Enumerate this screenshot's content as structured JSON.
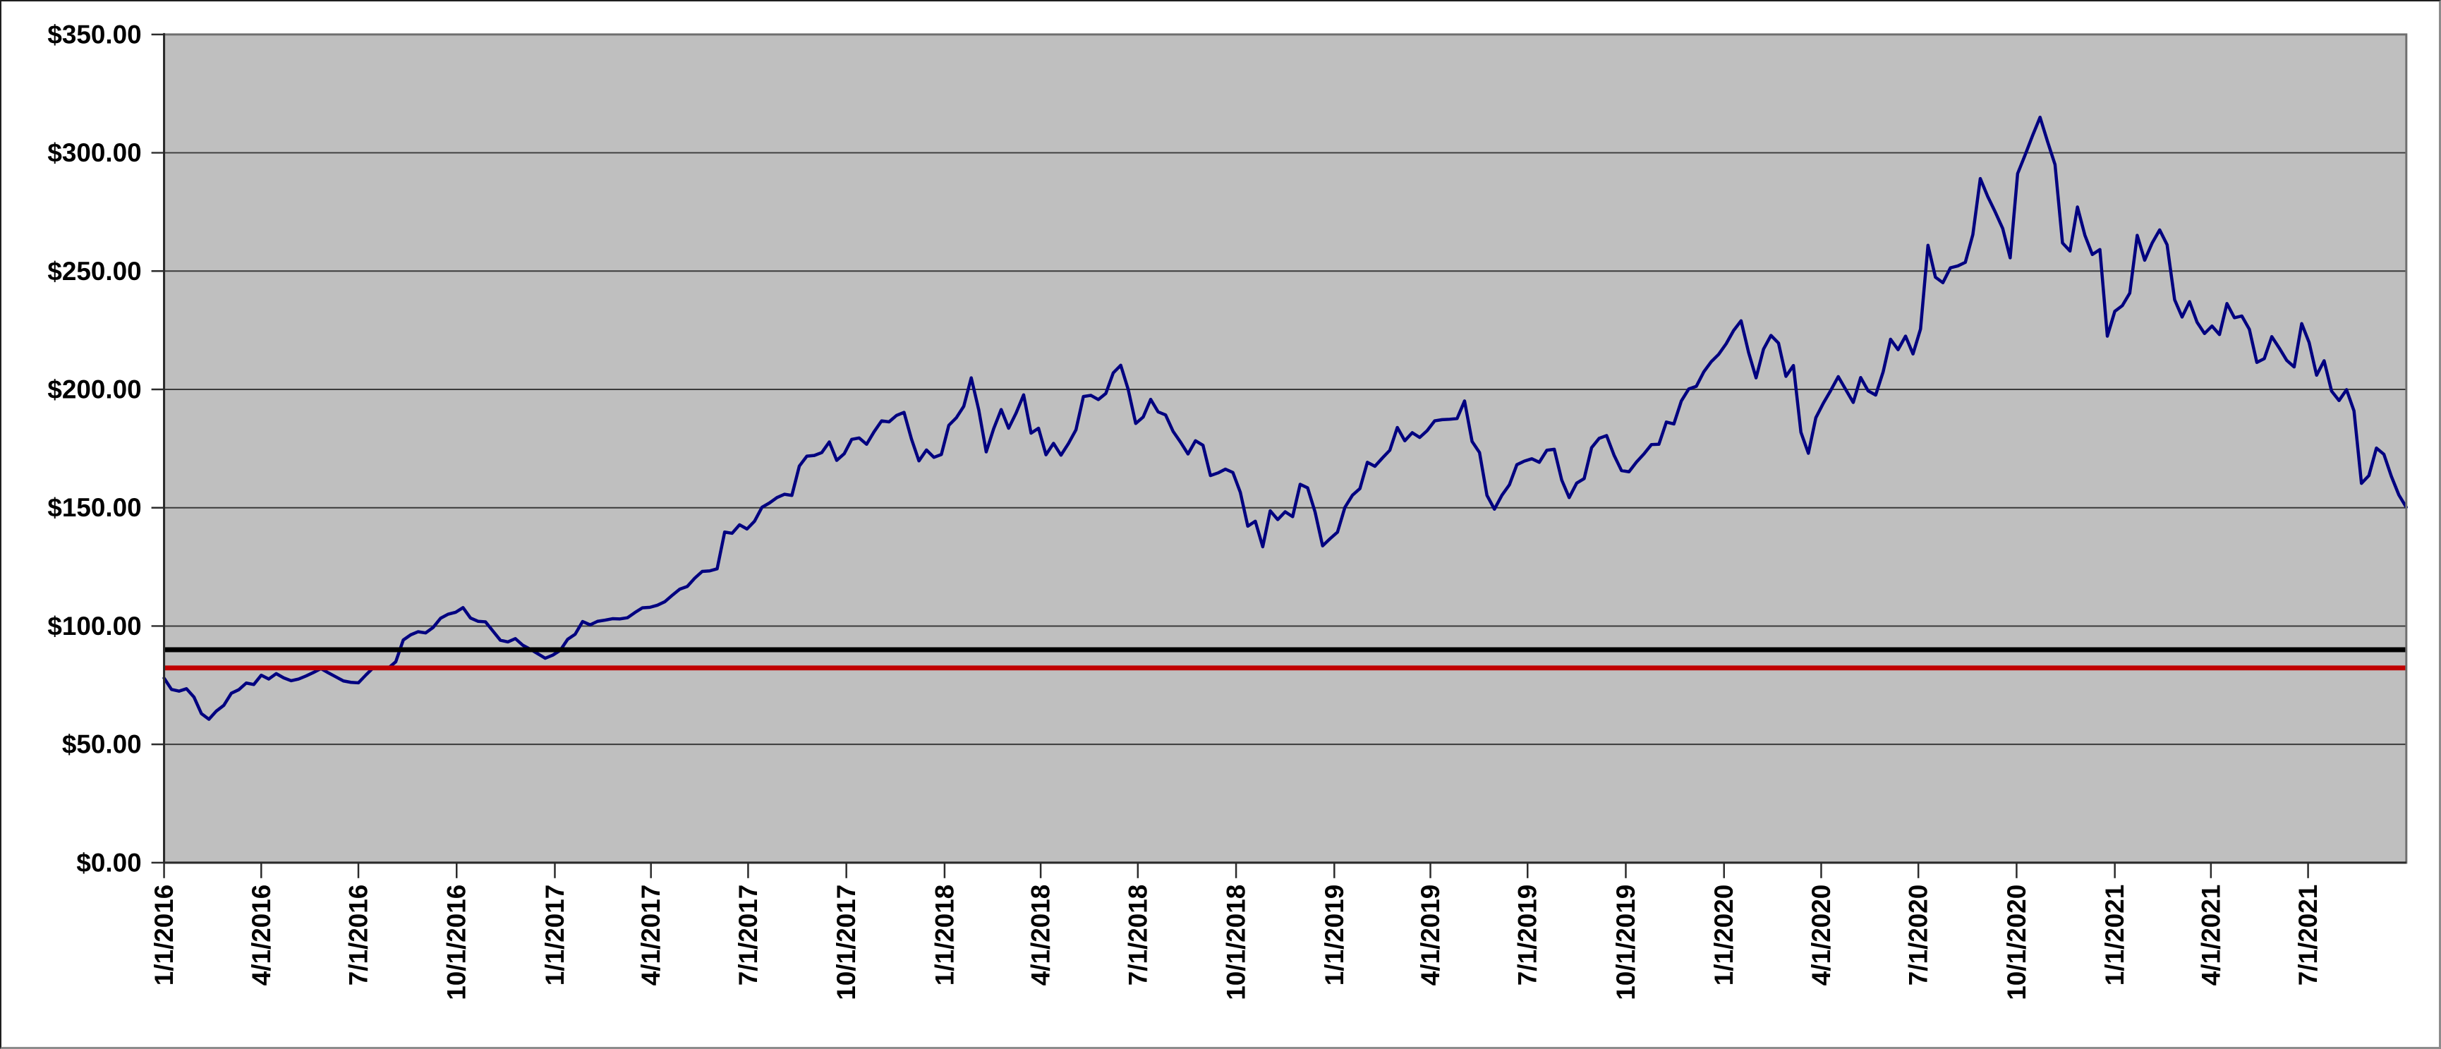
{
  "chart_data": {
    "type": "line",
    "title": "",
    "background_color": "#FFFFFF",
    "plot_area_color": "#BFBFBF",
    "plot_border_color": "#6F6F6F",
    "grid_color": "#3A3A3A",
    "axis_color": "#2B2B2B",
    "grid": true,
    "legend": "none",
    "y_axis": {
      "min": 0,
      "max": 350,
      "step": 50,
      "tick_labels": [
        "$350.00",
        "$300.00",
        "$250.00",
        "$200.00",
        "$150.00",
        "$100.00",
        "$50.00",
        "$0.00"
      ]
    },
    "x_axis": {
      "start_date": "1/1/2016",
      "end_date": "10/1/2021",
      "tick_labels": [
        "1/1/2016",
        "4/1/2016",
        "7/1/2016",
        "10/1/2016",
        "1/1/2017",
        "4/1/2017",
        "7/1/2017",
        "10/1/2017",
        "1/1/2018",
        "4/1/2018",
        "7/1/2018",
        "10/1/2018",
        "1/1/2019",
        "4/1/2019",
        "7/1/2019",
        "10/1/2019",
        "1/1/2020",
        "4/1/2020",
        "7/1/2020",
        "10/1/2020",
        "1/1/2021",
        "4/1/2021",
        "7/1/2021"
      ]
    },
    "series": [
      {
        "name": "price-line",
        "type": "line",
        "color": "#000080",
        "sampling": "weekly",
        "start_date": "1/1/2016",
        "end_date": "10/1/2021",
        "values": [
          78.0,
          73.2,
          72.5,
          73.5,
          70.0,
          63.0,
          60.6,
          64.1,
          66.5,
          71.6,
          73.1,
          75.9,
          75.3,
          79.2,
          77.6,
          79.9,
          78.1,
          76.9,
          77.6,
          78.9,
          80.4,
          82.0,
          80.2,
          78.5,
          76.8,
          76.2,
          76.0,
          79.3,
          82.4,
          82.0,
          82.2,
          84.9,
          94.1,
          96.3,
          97.6,
          97.1,
          99.4,
          103.3,
          105.0,
          105.8,
          107.8,
          103.4,
          102.0,
          101.8,
          97.9,
          94.0,
          93.3,
          94.7,
          91.9,
          90.2,
          88.3,
          86.4,
          87.7,
          89.7,
          94.4,
          96.5,
          101.9,
          100.5,
          102.0,
          102.5,
          103.1,
          103.0,
          103.5,
          105.7,
          107.7,
          107.9,
          108.8,
          110.3,
          113.0,
          115.6,
          116.7,
          120.2,
          123.1,
          123.3,
          124.2,
          139.7,
          139.2,
          142.8,
          141.0,
          144.3,
          150.2,
          152.0,
          154.3,
          155.7,
          155.2,
          167.6,
          171.8,
          172.1,
          173.3,
          177.8,
          170.0,
          172.8,
          178.9,
          179.5,
          176.8,
          182.1,
          186.7,
          186.3,
          189.0,
          190.3,
          179.0,
          169.8,
          174.4,
          171.3,
          172.5,
          184.8,
          188.0,
          192.9,
          204.9,
          191.3,
          173.6,
          183.4,
          191.5,
          183.6,
          190.0,
          197.7,
          181.5,
          183.6,
          172.4,
          177.2,
          172.2,
          177.1,
          182.9,
          197.0,
          197.5,
          195.7,
          198.3,
          207.0,
          210.2,
          199.9,
          185.6,
          188.3,
          195.8,
          190.5,
          189.2,
          182.3,
          177.7,
          172.7,
          178.3,
          176.4,
          163.6,
          164.7,
          166.3,
          164.9,
          156.5,
          142.2,
          144.3,
          133.5,
          148.7,
          145.0,
          148.3,
          146.2,
          159.9,
          158.4,
          148.2,
          133.9,
          136.9,
          139.7,
          150.2,
          155.3,
          158.1,
          169.2,
          167.5,
          171.0,
          174.3,
          183.9,
          178.3,
          181.7,
          179.7,
          182.6,
          186.7,
          187.2,
          187.4,
          187.7,
          195.1,
          178.0,
          173.3,
          155.2,
          149.4,
          155.3,
          159.7,
          168.2,
          169.7,
          170.7,
          169.2,
          174.3,
          174.7,
          161.7,
          154.3,
          160.4,
          162.3,
          175.4,
          179.3,
          180.5,
          172.2,
          165.7,
          165.2,
          169.3,
          172.7,
          176.7,
          176.8,
          186.2,
          185.4,
          195.1,
          200.2,
          201.3,
          207.4,
          211.7,
          214.8,
          219.3,
          224.9,
          229.0,
          215.6,
          204.9,
          217.0,
          222.8,
          219.6,
          205.5,
          210.1,
          181.9,
          173.0,
          188.0,
          194.2,
          199.6,
          205.4,
          199.9,
          194.5,
          205.0,
          199.4,
          197.6,
          207.4,
          221.2,
          216.8,
          222.5,
          215.0,
          225.5,
          260.9,
          247.4,
          245.1,
          251.4,
          252.2,
          253.7,
          265.4,
          289.1,
          281.5,
          275.0,
          268.0,
          255.6,
          291.2,
          299.1,
          307.3,
          315.0,
          304.7,
          295.0,
          261.9,
          258.5,
          277.1,
          265.1,
          257.0,
          259.1,
          222.5,
          233.0,
          235.4,
          240.7,
          265.1,
          254.6,
          261.9,
          267.4,
          261.1,
          237.9,
          230.6,
          237.1,
          228.4,
          223.6,
          226.8,
          223.2,
          236.3,
          230.3,
          231.0,
          225.4,
          211.4,
          213.0,
          222.3,
          217.5,
          212.3,
          209.5,
          227.8,
          219.8,
          206.0,
          212.1,
          199.3,
          195.3,
          199.9,
          190.9,
          160.3,
          163.6,
          175.2,
          172.6,
          163.3,
          155.4,
          150.2
        ]
      },
      {
        "name": "reference-line-upper",
        "type": "hline",
        "color": "#000000",
        "value": 90.0
      },
      {
        "name": "reference-line-lower",
        "type": "hline",
        "color": "#C00000",
        "value": 82.3
      }
    ]
  }
}
